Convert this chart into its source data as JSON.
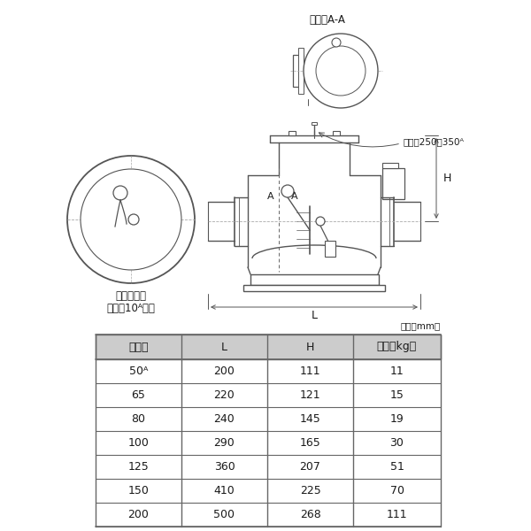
{
  "bg_color": "#ffffff",
  "table_headers": [
    "呼び径",
    "L",
    "H",
    "質量（kg）"
  ],
  "table_rows": [
    [
      "50ᴬ",
      "200",
      "111",
      "11"
    ],
    [
      "65",
      "220",
      "121",
      "15"
    ],
    [
      "80",
      "240",
      "145",
      "19"
    ],
    [
      "100",
      "290",
      "165",
      "30"
    ],
    [
      "125",
      "360",
      "207",
      "51"
    ],
    [
      "150",
      "410",
      "225",
      "70"
    ],
    [
      "200",
      "500",
      "268",
      "111"
    ]
  ],
  "unit_label": "単位（mm）",
  "section_label": "断面　A-A",
  "note_label_line1": "弁体の構造",
  "note_label_line2": "呼び径10ᴬ以下",
  "note_250_350": "呼び径250～350ᴬ",
  "header_bg": "#cccccc",
  "table_line_color": "#666666",
  "text_color": "#1a1a1a",
  "draw_color": "#555555",
  "fig_width": 6.0,
  "fig_height": 6.0,
  "dpi": 100
}
